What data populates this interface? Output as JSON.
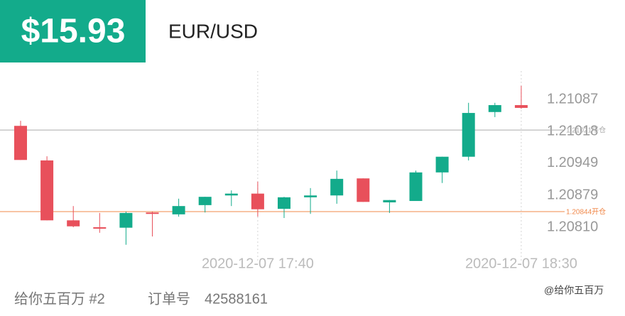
{
  "header": {
    "price": "$15.93",
    "pair": "EUR/USD"
  },
  "chart_data": {
    "type": "candlestick",
    "categories": [
      null,
      null,
      null,
      null,
      null,
      null,
      null,
      null,
      null,
      "2020-12-07 17:40",
      null,
      null,
      null,
      null,
      null,
      null,
      null,
      null,
      null,
      "2020-12-07 18:30"
    ],
    "open": [
      1.2103,
      1.20955,
      1.20825,
      1.2081,
      1.20809,
      1.20842,
      1.20838,
      1.20858,
      1.20879,
      1.20883,
      1.2085,
      1.20875,
      1.20879,
      1.20916,
      1.20864,
      1.20867,
      1.20929,
      1.20963,
      1.2106,
      1.21075
    ],
    "high": [
      1.21041,
      1.20964,
      1.20856,
      1.20841,
      1.20844,
      1.20844,
      1.20872,
      1.20876,
      1.2089,
      1.20909,
      1.20876,
      1.20895,
      1.20933,
      1.20916,
      1.20869,
      1.20933,
      1.20963,
      1.2108,
      1.2108,
      1.21117
    ],
    "low": [
      1.20956,
      1.20825,
      1.2081,
      1.20798,
      1.20772,
      1.2079,
      1.20833,
      1.20842,
      1.20856,
      1.20833,
      1.2083,
      1.20839,
      1.20861,
      1.20865,
      1.20841,
      1.20867,
      1.20906,
      1.20955,
      1.21049,
      1.21067
    ],
    "close": [
      1.20956,
      1.20825,
      1.20812,
      1.20807,
      1.20841,
      1.20839,
      1.20856,
      1.20876,
      1.20883,
      1.20849,
      1.20875,
      1.20879,
      1.20915,
      1.20865,
      1.20869,
      1.20929,
      1.20963,
      1.21058,
      1.21075,
      1.21069
    ],
    "up_color": "#13ab8b",
    "down_color": "#e8505b",
    "ylim": [
      1.20733,
      1.21149
    ],
    "yticks": [
      1.21087,
      1.21018,
      1.20949,
      1.20879,
      {
        "value": 1.2081,
        "label": "1.20810"
      }
    ],
    "price_lines": [
      {
        "value": 1.21021,
        "label": "1.21021平仓",
        "color": "#aaaaaa"
      },
      {
        "value": 1.20844,
        "label": "1.20844开仓",
        "color": "#f0884a"
      }
    ],
    "grid": true
  },
  "footer": {
    "account": "给你五百万 #2",
    "order_label": "订单号",
    "order_number": "42588161",
    "watermark": "@给你五百万"
  }
}
